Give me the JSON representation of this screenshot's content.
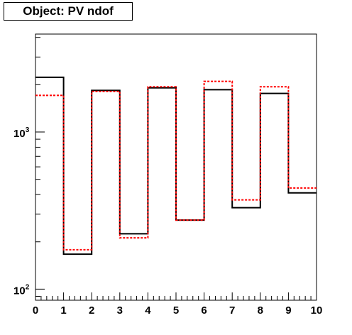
{
  "title": "Object: PV ndof",
  "chart_data": {
    "type": "step-histogram",
    "title": "Object: PV ndof",
    "xlabel": "",
    "ylabel": "",
    "x_scale": "linear",
    "y_scale": "log",
    "xlim": [
      0,
      10
    ],
    "ylim": [
      85,
      4200
    ],
    "grid": false,
    "legend": "none",
    "x_ticks": [
      "0",
      "1",
      "2",
      "3",
      "4",
      "5",
      "6",
      "7",
      "8",
      "9",
      "10"
    ],
    "y_ticks": [
      {
        "value": 100,
        "base": "10",
        "exp": "2"
      },
      {
        "value": 1000,
        "base": "10",
        "exp": "3"
      }
    ],
    "bin_edges": [
      0,
      1,
      2,
      3,
      4,
      5,
      6,
      7,
      8,
      9,
      10
    ],
    "series": [
      {
        "color": "#000000",
        "style": "solid",
        "values": [
          2230,
          167,
          1840,
          225,
          1910,
          275,
          1860,
          330,
          1760,
          410
        ]
      },
      {
        "color": "#ff0000",
        "style": "dashed",
        "values": [
          1710,
          178,
          1810,
          212,
          1940,
          275,
          2100,
          370,
          1940,
          440
        ]
      }
    ]
  }
}
